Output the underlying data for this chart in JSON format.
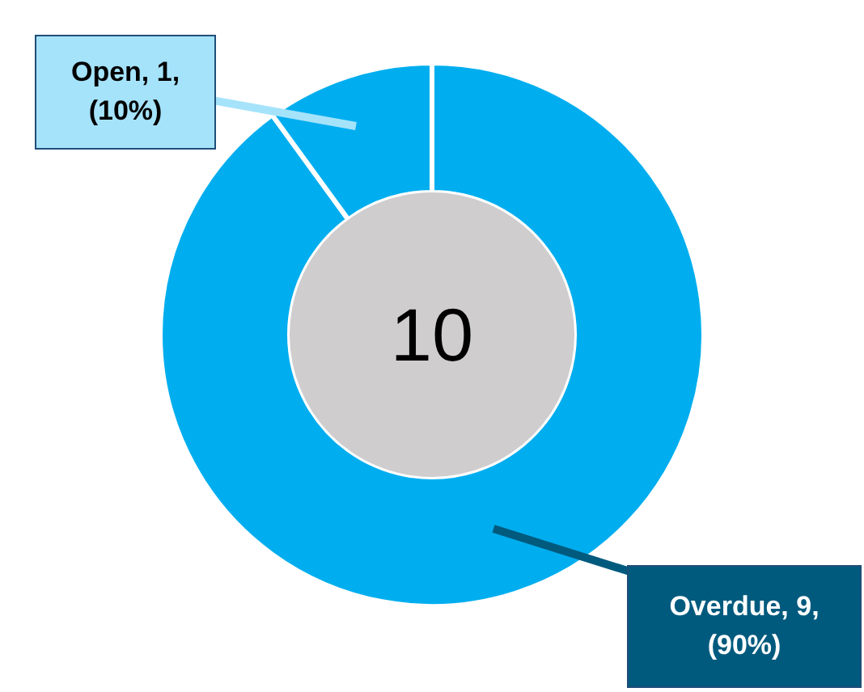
{
  "chart_data": {
    "type": "donut",
    "categories": [
      "Overdue",
      "Open"
    ],
    "values": [
      9,
      1
    ],
    "colors": [
      "#00aeef",
      "#00aeef"
    ],
    "value_labels": [
      "9,\n(90%)",
      "1,\n(10%)"
    ],
    "annotations": [
      "10"
    ]
  }
}
